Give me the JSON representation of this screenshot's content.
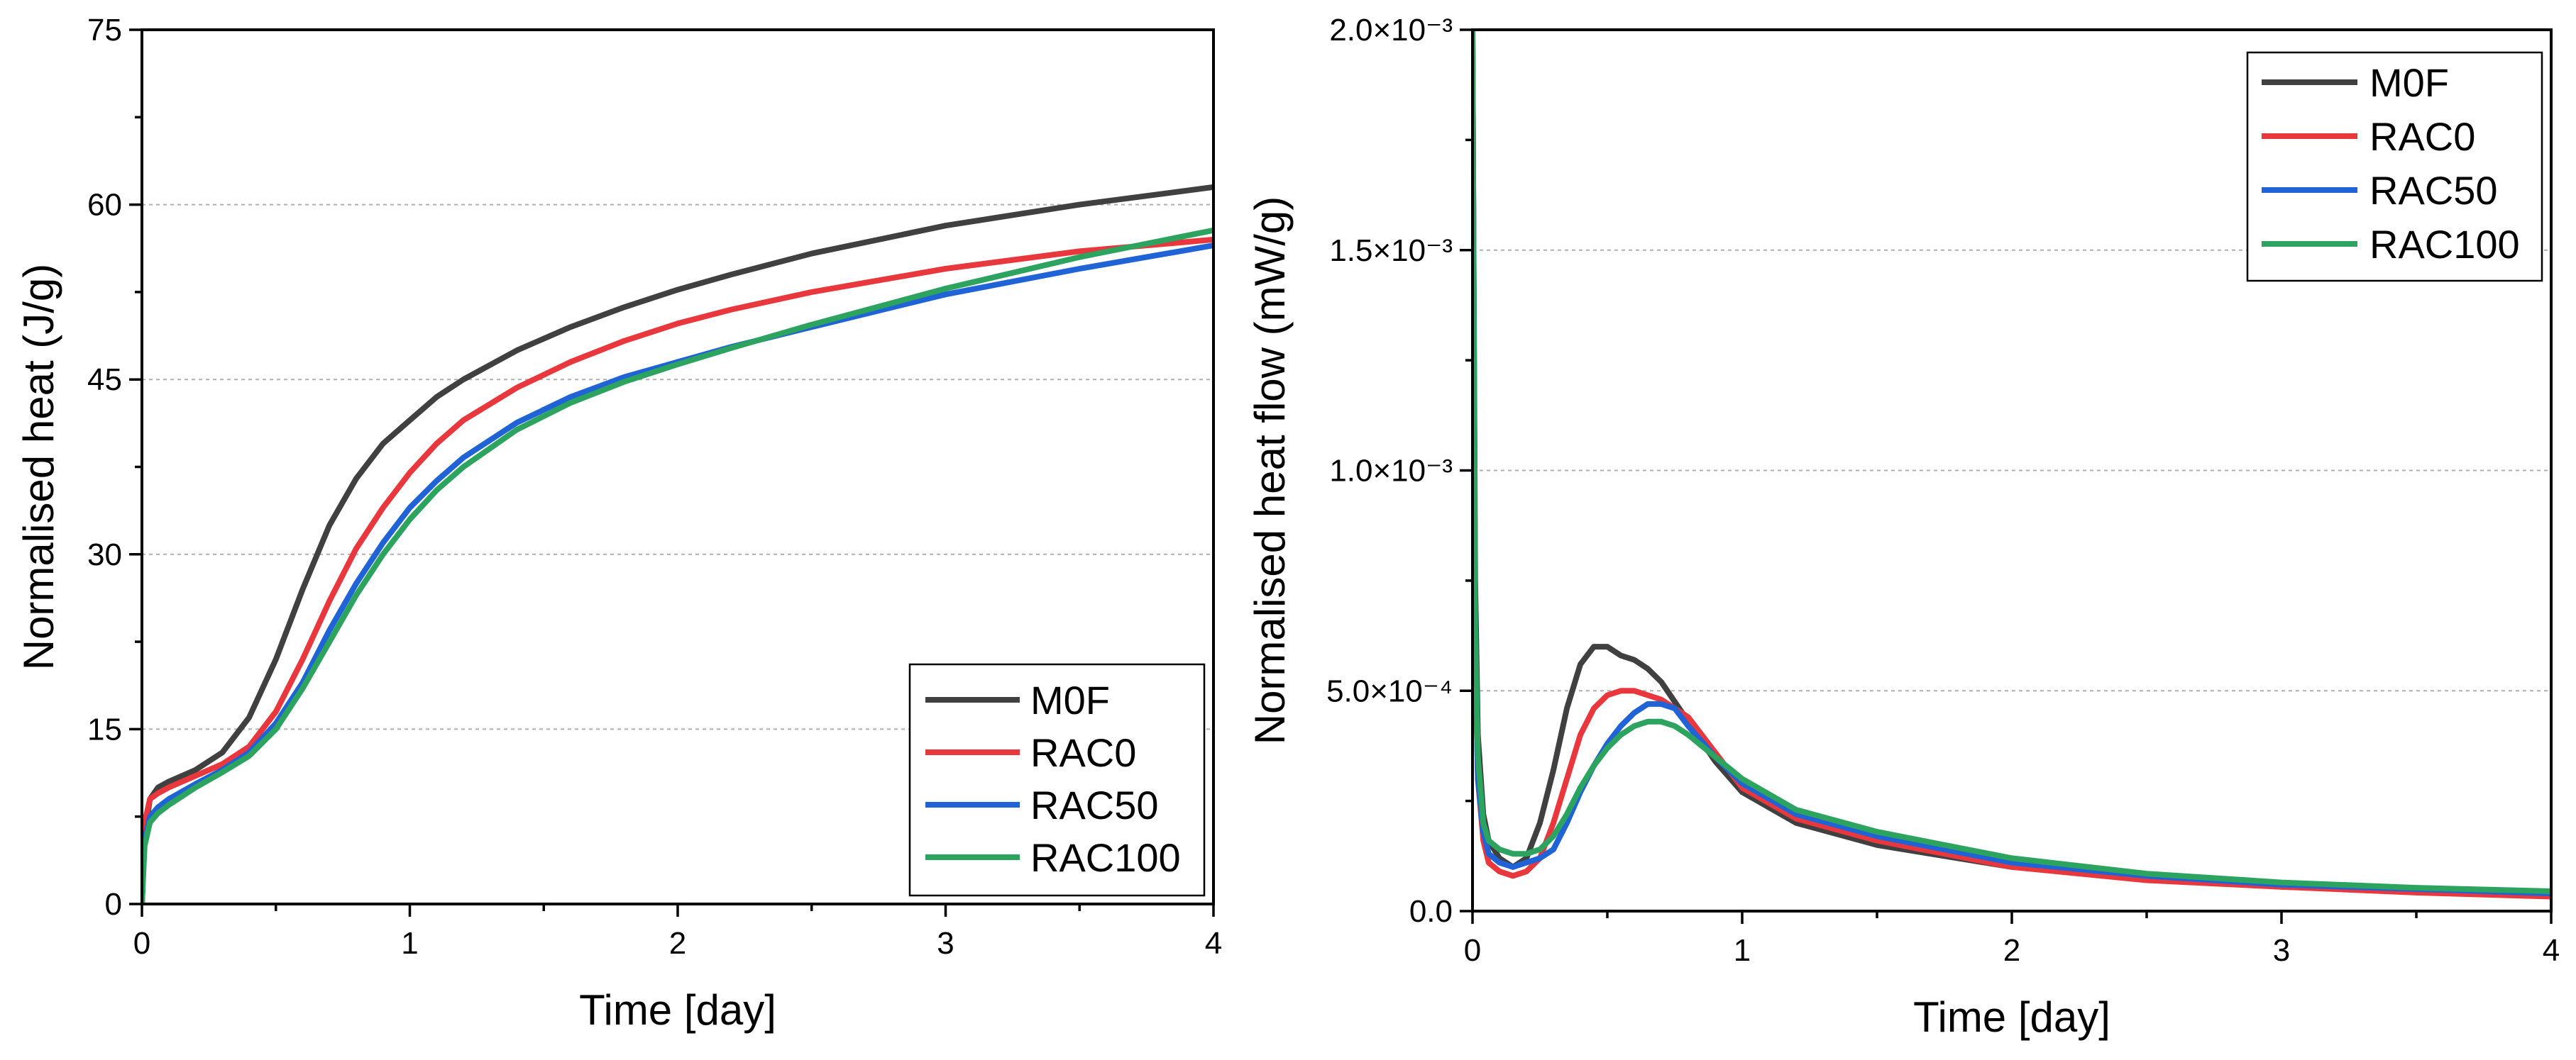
{
  "chart_data": [
    {
      "type": "line",
      "xlabel": "Time [day]",
      "ylabel": "Normalised heat (J/g)",
      "xlim": [
        0,
        4
      ],
      "ylim": [
        0,
        75
      ],
      "xticks": [
        0,
        1,
        2,
        3,
        4
      ],
      "xtick_labels": [
        "0",
        "1",
        "2",
        "3",
        "4"
      ],
      "yticks": [
        0,
        15,
        30,
        45,
        60,
        75
      ],
      "ytick_labels": [
        "0",
        "15",
        "30",
        "45",
        "60",
        "75"
      ],
      "grid": "horizontal",
      "legend_position": "bottom-right",
      "series": [
        {
          "name": "M0F",
          "color": "#404040",
          "x": [
            0,
            0.01,
            0.03,
            0.06,
            0.1,
            0.2,
            0.3,
            0.4,
            0.5,
            0.6,
            0.7,
            0.8,
            0.9,
            1.0,
            1.1,
            1.2,
            1.4,
            1.6,
            1.8,
            2.0,
            2.2,
            2.5,
            3.0,
            3.5,
            4.0
          ],
          "y": [
            0,
            6,
            9,
            10,
            10.5,
            11.5,
            13,
            16,
            21,
            27,
            32.5,
            36.5,
            39.5,
            41.5,
            43.5,
            45,
            47.5,
            49.5,
            51.2,
            52.7,
            54,
            55.8,
            58.2,
            60,
            61.5
          ]
        },
        {
          "name": "RAC0",
          "color": "#e8383d",
          "x": [
            0,
            0.01,
            0.03,
            0.06,
            0.1,
            0.2,
            0.3,
            0.4,
            0.5,
            0.6,
            0.7,
            0.8,
            0.9,
            1.0,
            1.1,
            1.2,
            1.4,
            1.6,
            1.8,
            2.0,
            2.2,
            2.5,
            3.0,
            3.5,
            4.0
          ],
          "y": [
            0,
            7,
            9,
            9.5,
            10,
            11,
            12,
            13.5,
            16.5,
            21,
            26,
            30.5,
            34,
            37,
            39.5,
            41.5,
            44.3,
            46.5,
            48.3,
            49.8,
            51,
            52.5,
            54.5,
            56,
            57
          ]
        },
        {
          "name": "RAC50",
          "color": "#1f63d6",
          "x": [
            0,
            0.01,
            0.03,
            0.06,
            0.1,
            0.2,
            0.3,
            0.4,
            0.5,
            0.6,
            0.7,
            0.8,
            0.9,
            1.0,
            1.1,
            1.2,
            1.4,
            1.6,
            1.8,
            2.0,
            2.2,
            2.5,
            3.0,
            3.5,
            4.0
          ],
          "y": [
            0,
            5.5,
            7.5,
            8.3,
            9,
            10.3,
            11.5,
            13,
            15.5,
            19,
            23.5,
            27.5,
            31,
            34,
            36.3,
            38.3,
            41.3,
            43.5,
            45.2,
            46.5,
            47.8,
            49.5,
            52.3,
            54.5,
            56.5
          ]
        },
        {
          "name": "RAC100",
          "color": "#2ca35e",
          "x": [
            0,
            0.01,
            0.03,
            0.06,
            0.1,
            0.2,
            0.3,
            0.4,
            0.5,
            0.6,
            0.7,
            0.8,
            0.9,
            1.0,
            1.1,
            1.2,
            1.4,
            1.6,
            1.8,
            2.0,
            2.2,
            2.5,
            3.0,
            3.5,
            4.0
          ],
          "y": [
            0,
            5,
            7,
            7.8,
            8.5,
            10,
            11.3,
            12.7,
            15,
            18.5,
            22.5,
            26.5,
            30,
            33,
            35.5,
            37.5,
            40.7,
            43,
            44.8,
            46.3,
            47.7,
            49.7,
            52.8,
            55.5,
            57.8
          ]
        }
      ]
    },
    {
      "type": "line",
      "xlabel": "Time [day]",
      "ylabel": "Normalised heat flow (mW/g)",
      "xlim": [
        0,
        4
      ],
      "ylim": [
        0,
        0.002
      ],
      "xticks": [
        0,
        1,
        2,
        3,
        4
      ],
      "xtick_labels": [
        "0",
        "1",
        "2",
        "3",
        "4"
      ],
      "yticks": [
        0,
        0.0005,
        0.001,
        0.0015,
        0.002
      ],
      "ytick_labels": [
        "0.0",
        "5.0×10⁻⁴",
        "1.0×10⁻³",
        "1.5×10⁻³",
        "2.0×10⁻³"
      ],
      "grid": "horizontal",
      "legend_position": "top-right",
      "series": [
        {
          "name": "M0F",
          "color": "#404040",
          "x": [
            0,
            0.01,
            0.02,
            0.04,
            0.06,
            0.1,
            0.15,
            0.2,
            0.25,
            0.3,
            0.35,
            0.4,
            0.45,
            0.5,
            0.55,
            0.6,
            0.65,
            0.7,
            0.8,
            0.9,
            1.0,
            1.2,
            1.5,
            2.0,
            2.5,
            3.0,
            3.5,
            4.0
          ],
          "y": [
            0.002,
            0.00075,
            0.0004,
            0.00022,
            0.00016,
            0.00012,
            0.0001,
            0.00012,
            0.0002,
            0.00032,
            0.00046,
            0.00056,
            0.0006,
            0.0006,
            0.00058,
            0.00057,
            0.00055,
            0.00052,
            0.00043,
            0.00034,
            0.00027,
            0.0002,
            0.00015,
            0.0001,
            7.5e-05,
            5.5e-05,
            4.5e-05,
            3.5e-05
          ]
        },
        {
          "name": "RAC0",
          "color": "#e8383d",
          "x": [
            0,
            0.01,
            0.02,
            0.04,
            0.06,
            0.1,
            0.15,
            0.2,
            0.25,
            0.3,
            0.35,
            0.4,
            0.45,
            0.5,
            0.55,
            0.6,
            0.65,
            0.7,
            0.8,
            0.9,
            1.0,
            1.2,
            1.5,
            2.0,
            2.5,
            3.0,
            3.5,
            4.0
          ],
          "y": [
            0.002,
            0.0006,
            0.0003,
            0.00016,
            0.00011,
            9e-05,
            8e-05,
            9e-05,
            0.00012,
            0.0002,
            0.0003,
            0.0004,
            0.00046,
            0.00049,
            0.0005,
            0.0005,
            0.00049,
            0.00048,
            0.00044,
            0.00036,
            0.00028,
            0.00021,
            0.00016,
            0.0001,
            7e-05,
            5.5e-05,
            4.2e-05,
            3.3e-05
          ]
        },
        {
          "name": "RAC50",
          "color": "#1f63d6",
          "x": [
            0,
            0.01,
            0.02,
            0.04,
            0.06,
            0.1,
            0.15,
            0.2,
            0.25,
            0.3,
            0.35,
            0.4,
            0.45,
            0.5,
            0.55,
            0.6,
            0.65,
            0.7,
            0.75,
            0.8,
            0.9,
            1.0,
            1.2,
            1.5,
            2.0,
            2.5,
            3.0,
            3.5,
            4.0
          ],
          "y": [
            0.002,
            0.0006,
            0.0003,
            0.00018,
            0.00013,
            0.00011,
            0.0001,
            0.00011,
            0.00012,
            0.00014,
            0.0002,
            0.00027,
            0.00033,
            0.00038,
            0.00042,
            0.00045,
            0.00047,
            0.00047,
            0.00046,
            0.00042,
            0.00035,
            0.00029,
            0.00022,
            0.00017,
            0.00011,
            8e-05,
            6e-05,
            5e-05,
            4e-05
          ]
        },
        {
          "name": "RAC100",
          "color": "#2ca35e",
          "x": [
            0,
            0.01,
            0.02,
            0.04,
            0.06,
            0.1,
            0.15,
            0.2,
            0.25,
            0.3,
            0.35,
            0.4,
            0.45,
            0.5,
            0.55,
            0.6,
            0.65,
            0.7,
            0.75,
            0.8,
            0.9,
            1.0,
            1.2,
            1.5,
            2.0,
            2.5,
            3.0,
            3.5,
            4.0
          ],
          "y": [
            0.002,
            0.00065,
            0.00035,
            0.0002,
            0.00016,
            0.00014,
            0.00013,
            0.00013,
            0.00014,
            0.00017,
            0.00022,
            0.00028,
            0.00033,
            0.00037,
            0.0004,
            0.00042,
            0.00043,
            0.00043,
            0.00042,
            0.0004,
            0.00035,
            0.0003,
            0.00023,
            0.00018,
            0.00012,
            8.5e-05,
            6.5e-05,
            5.3e-05,
            4.5e-05
          ]
        }
      ]
    }
  ]
}
